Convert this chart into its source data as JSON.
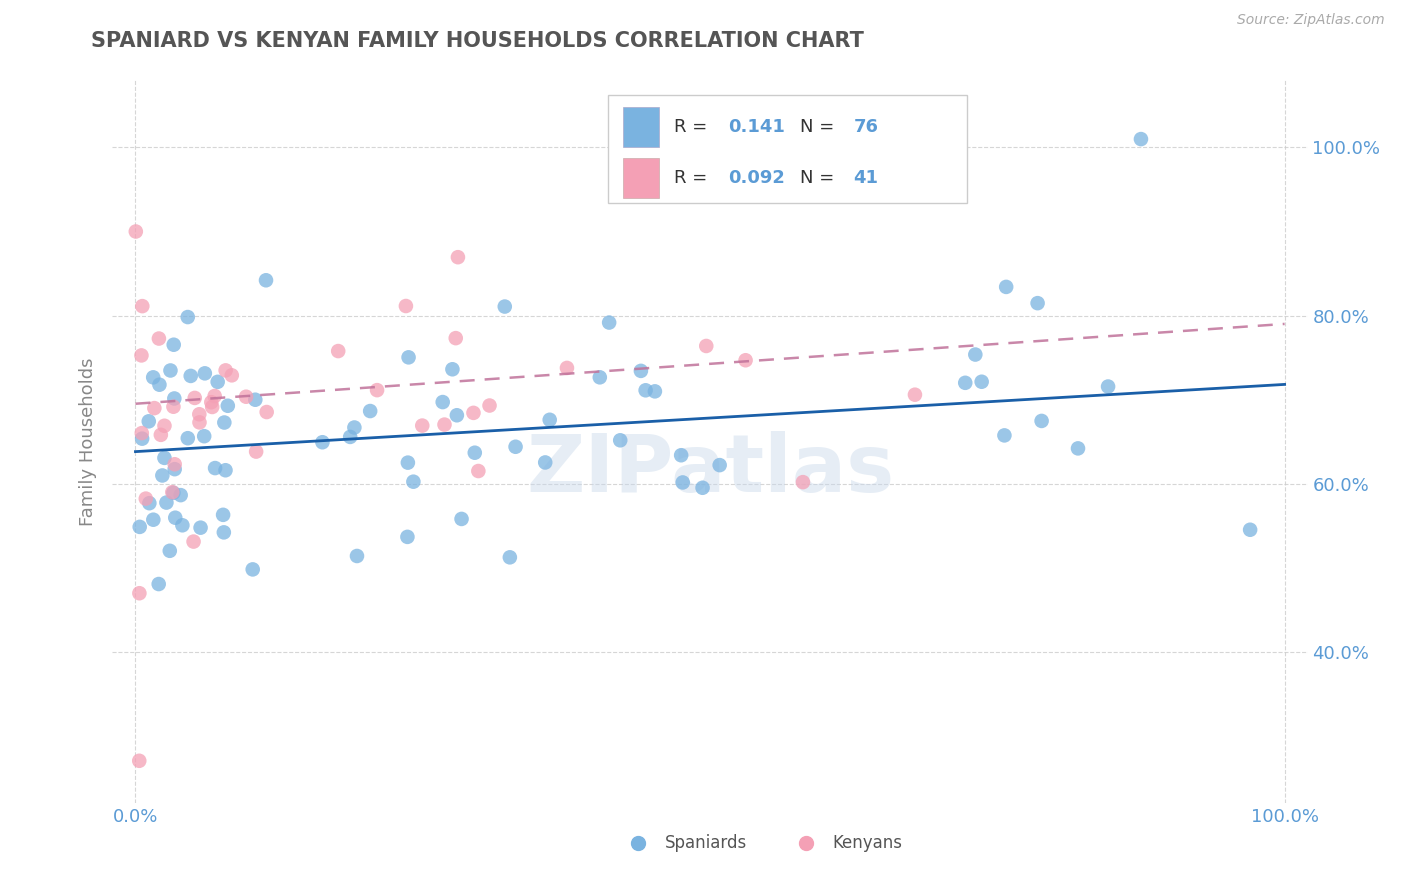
{
  "title": "SPANIARD VS KENYAN FAMILY HOUSEHOLDS CORRELATION CHART",
  "source": "Source: ZipAtlas.com",
  "ylabel": "Family Households",
  "watermark": "ZIPatlas",
  "spaniard_color": "#7ab3e0",
  "kenyan_color": "#f4a0b5",
  "spaniard_line_color": "#1a5fa8",
  "kenyan_line_color": "#c0729a",
  "background_color": "#ffffff",
  "grid_color": "#cccccc",
  "title_color": "#555555",
  "tick_color": "#5b9bd5",
  "ylabel_color": "#888888",
  "xlim": [
    -0.02,
    1.02
  ],
  "ylim": [
    0.22,
    1.08
  ],
  "xticks": [
    0.0,
    1.0
  ],
  "xticklabels": [
    "0.0%",
    "100.0%"
  ],
  "yticks": [
    0.4,
    0.6,
    0.8,
    1.0
  ],
  "yticklabels": [
    "40.0%",
    "60.0%",
    "80.0%",
    "100.0%"
  ],
  "spaniard_slope": 0.08,
  "spaniard_intercept": 0.638,
  "kenyan_slope": 0.095,
  "kenyan_intercept": 0.695,
  "legend_R1": "R = ",
  "legend_V1": "0.141",
  "legend_N1": "N = ",
  "legend_NV1": "76",
  "legend_R2": "R = ",
  "legend_V2": "0.092",
  "legend_N2": "N = ",
  "legend_NV2": "41",
  "bottom_label1": "Spaniards",
  "bottom_label2": "Kenyans"
}
